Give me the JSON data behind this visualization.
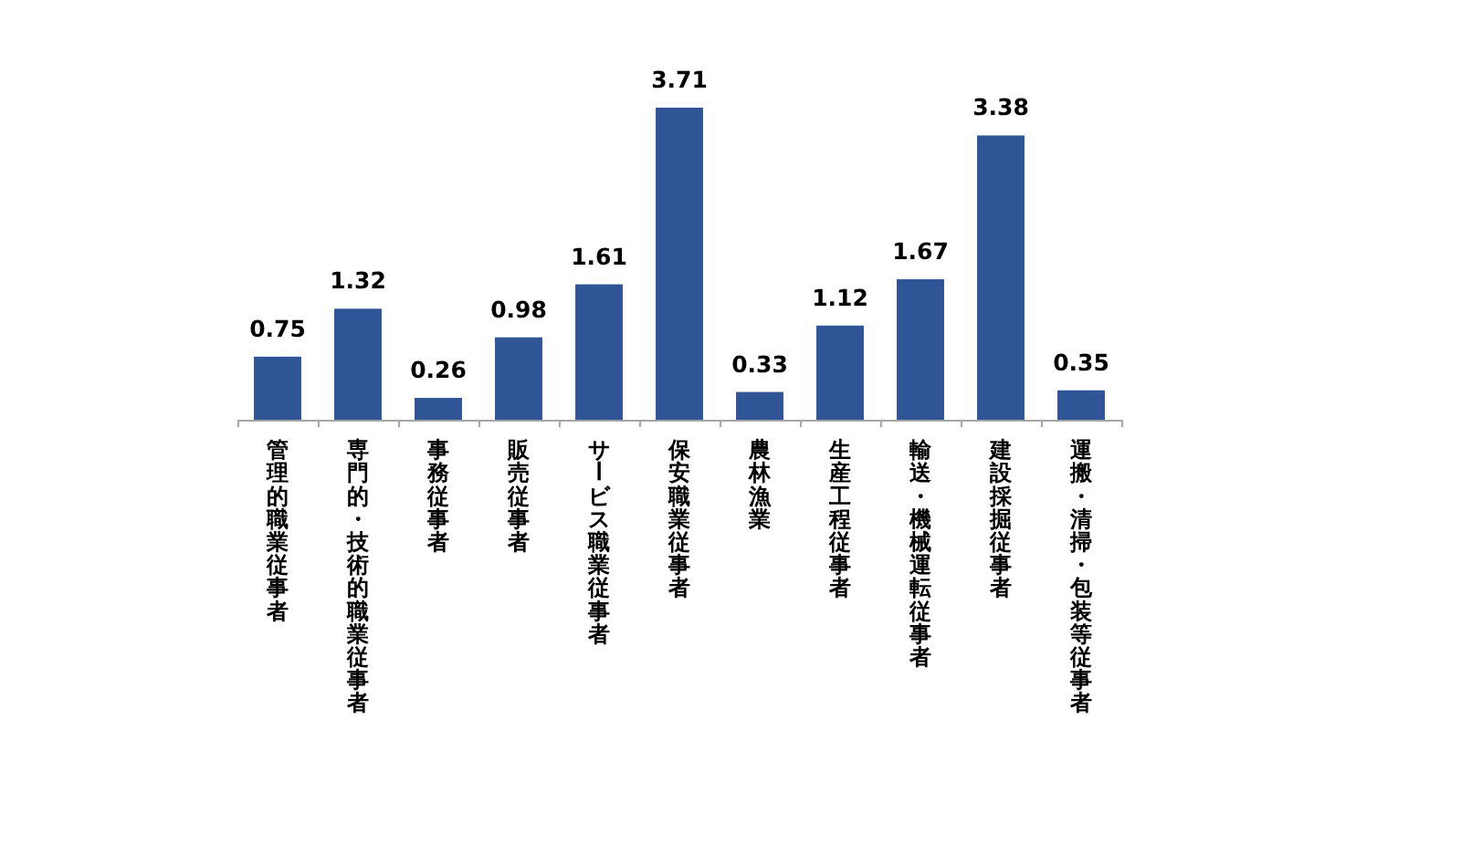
{
  "chart_data": {
    "type": "bar",
    "categories": [
      "管理的職業従事者",
      "専門的・技術的職業従事者",
      "事務従事者",
      "販売従事者",
      "サービス職業従事者",
      "保安職業従事者",
      "農林漁業",
      "生産工程従事者",
      "輸送・機械運転従事者",
      "建設採掘従事者",
      "運搬・清掃・包装等従事者"
    ],
    "values": [
      0.75,
      1.32,
      0.26,
      0.98,
      1.61,
      3.71,
      0.33,
      1.12,
      1.67,
      3.38,
      0.35
    ],
    "color": "#2f5597",
    "data_labels": true
  }
}
